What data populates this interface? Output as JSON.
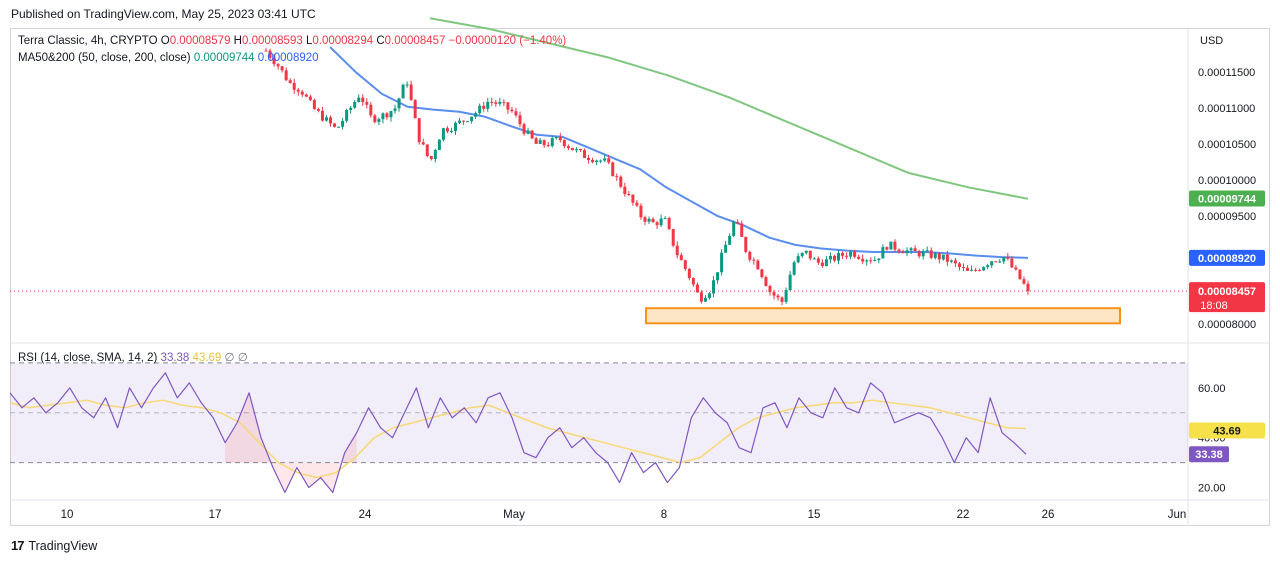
{
  "header": {
    "published": "Published on TradingView.com, May 25, 2023 03:41 UTC"
  },
  "legend": {
    "symbol": "Terra Classic, 4h, CRYPTO",
    "o_label": "O",
    "o_value": "0.00008579",
    "h_label": "H",
    "h_value": "0.00008593",
    "l_label": "L",
    "l_value": "0.00008294",
    "c_label": "C",
    "c_value": "0.00008457",
    "change": "−0.00000120 (−1.40%)",
    "ma_label": "MA50&200 (50, close, 200, close)",
    "ma200_value": "0.00009744",
    "ma50_value": "0.00008920",
    "rsi_label": "RSI (14, close, SMA, 14, 2)",
    "rsi_value": "33.38",
    "rsi_ma_value": "43.69",
    "rsi_extra": "∅ ∅"
  },
  "price_axis": {
    "currency": "USD",
    "ticks": [
      "0.00011500",
      "0.00011000",
      "0.00010500",
      "0.00010000",
      "0.00009500",
      "0.00008000"
    ],
    "tag_ma200": "0.00009744",
    "tag_ma50": "0.00008920",
    "tag_last": "0.00008457",
    "tag_countdown": "18:08"
  },
  "rsi_axis": {
    "ticks": [
      "60.00",
      "40.00",
      "20.00"
    ],
    "tag_ma": "43.69",
    "tag_rsi": "33.38"
  },
  "time_axis": {
    "labels": [
      "10",
      "17",
      "24",
      "May",
      "8",
      "15",
      "22",
      "26",
      "Jun"
    ]
  },
  "footer": {
    "brand": "TradingView"
  },
  "colors": {
    "up": "#089981",
    "down": "#f23645",
    "ma50": "#5b8def",
    "ma200": "#7fc77f",
    "rsi_line": "#7e57c2",
    "rsi_ma": "#f7d875",
    "support_box": "#f7931a",
    "tag_ma200": "#4caf50",
    "tag_ma50": "#2962ff",
    "tag_last": "#f23645",
    "tag_rsi": "#7e57c2",
    "tag_rsi_ma": "#f7e14a"
  },
  "chart_data": [
    {
      "type": "candlestick",
      "title": "Terra Classic, 4h, CRYPTO",
      "ylabel": "USD",
      "ylim": [
        7.75e-05,
        0.000121
      ],
      "x_labels": [
        "10",
        "17",
        "24",
        "May",
        "8",
        "15",
        "22",
        "26",
        "Jun"
      ],
      "support_zone": [
        8.01e-05,
        8.22e-05
      ],
      "last_close": 8.457e-05,
      "ma50_last": 8.92e-05,
      "ma200_last": 9.744e-05,
      "close_path": [
        0.000118,
        0.000116,
        0.0001135,
        0.0001125,
        0.00011,
        0.0001085,
        0.000107,
        0.0001095,
        0.000112,
        0.0001085,
        0.000109,
        0.00011,
        0.000114,
        0.000106,
        0.0001025,
        0.000107,
        0.0001075,
        0.0001085,
        0.0001095,
        0.000111,
        0.0001105,
        0.0001095,
        0.000107,
        0.000105,
        0.000105,
        0.0001058,
        0.0001045,
        0.0001035,
        0.000103,
        0.0001025,
        0.0001,
        9.75e-05,
        9.5e-05,
        9.4e-05,
        9.45e-05,
        9e-05,
        8.7e-05,
        8.35e-05,
        8.5e-05,
        9e-05,
        9.45e-05,
        9e-05,
        8.8e-05,
        8.45e-05,
        8.3e-05,
        8.85e-05,
        9e-05,
        8.85e-05,
        8.88e-05,
        8.95e-05,
        9e-05,
        8.92e-05,
        8.9e-05,
        9.1e-05,
        9.05e-05,
        9e-05,
        8.98e-05,
        8.95e-05,
        8.9e-05,
        8.8e-05,
        8.7e-05,
        8.8e-05,
        8.9e-05,
        8.93e-05,
        8.7e-05,
        8.46e-05
      ],
      "ma50": [
        0.0001185,
        0.000115,
        0.000112,
        0.0001102,
        0.0001098,
        0.0001095,
        0.0001088,
        0.0001075,
        0.0001063,
        0.000106,
        0.0001045,
        0.000103,
        0.0001015,
        9.9e-05,
        9.7e-05,
        9.5e-05,
        9.37e-05,
        9.2e-05,
        9.1e-05,
        9.05e-05,
        9.02e-05,
        9e-05,
        9e-05,
        9e-05,
        8.98e-05,
        8.95e-05,
        8.93e-05,
        8.92e-05
      ],
      "ma200": [
        0.0001225,
        0.000121,
        0.000119,
        0.000117,
        0.0001145,
        0.0001115,
        0.000108,
        0.0001045,
        0.000101,
        9.9e-05,
        9.74e-05
      ]
    },
    {
      "type": "line",
      "title": "RSI (14, close, SMA, 14, 2)",
      "ylim": [
        15,
        78
      ],
      "levels": [
        70,
        50,
        30
      ],
      "series": [
        {
          "name": "RSI",
          "values": [
            58,
            52,
            56,
            50,
            54,
            60,
            52,
            48,
            56,
            44,
            60,
            52,
            60,
            66,
            56,
            62,
            54,
            48,
            38,
            46,
            58,
            40,
            28,
            18,
            28,
            20,
            24,
            18,
            34,
            42,
            52,
            44,
            40,
            50,
            60,
            44,
            56,
            48,
            52,
            46,
            56,
            58,
            48,
            34,
            32,
            40,
            44,
            36,
            40,
            34,
            30,
            22,
            34,
            26,
            30,
            22,
            28,
            48,
            56,
            50,
            46,
            36,
            34,
            52,
            54,
            44,
            56,
            50,
            48,
            60,
            52,
            50,
            62,
            58,
            46,
            48,
            50,
            48,
            40,
            30,
            40,
            34,
            56,
            42,
            38,
            33.38
          ]
        },
        {
          "name": "RSI-based MA",
          "values": [
            54,
            52,
            53,
            54,
            55,
            53,
            52,
            54,
            55,
            53,
            52,
            50,
            46,
            38,
            30,
            26,
            24,
            26,
            32,
            40,
            44,
            46,
            48,
            50,
            52,
            53,
            50,
            47,
            44,
            42,
            40,
            38,
            36,
            34,
            32,
            30,
            32,
            38,
            44,
            48,
            50,
            52,
            53,
            54,
            54,
            55,
            54,
            53,
            52,
            50,
            48,
            46,
            44,
            43.69
          ]
        }
      ]
    }
  ]
}
